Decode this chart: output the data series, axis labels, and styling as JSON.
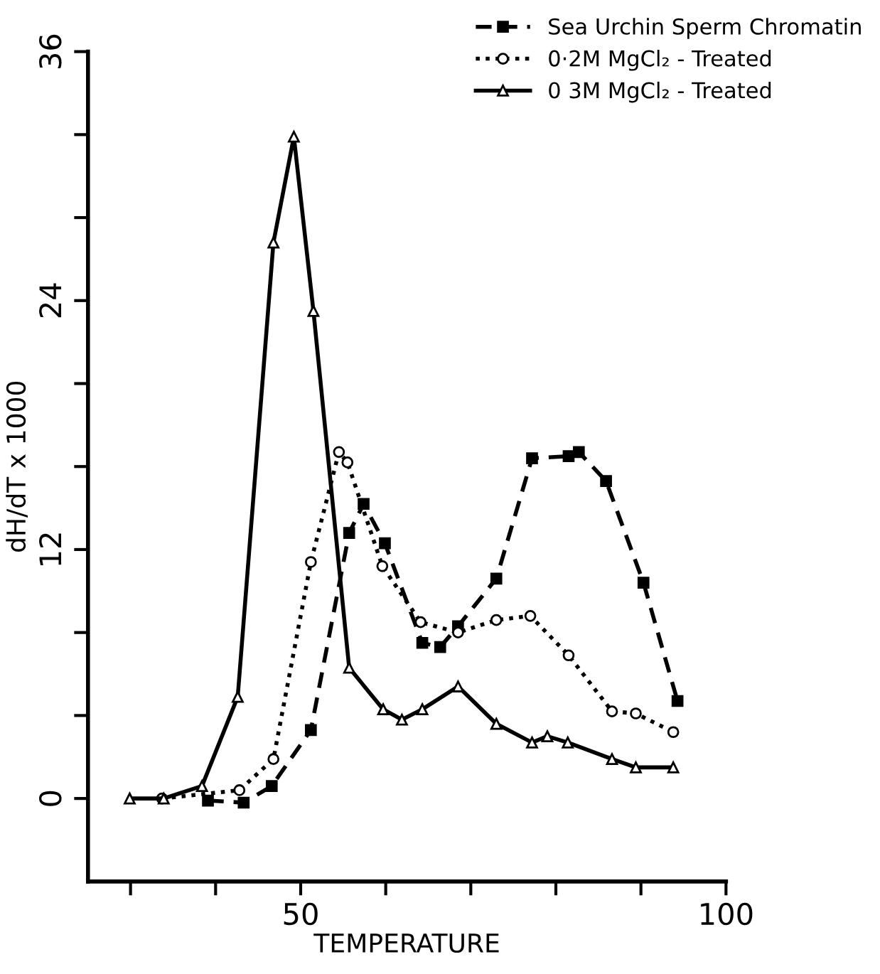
{
  "chart_data": {
    "type": "line",
    "xlabel": "TEMPERATURE",
    "ylabel": "dH/dT x 1000",
    "xlim": [
      25,
      100
    ],
    "ylim": [
      -4,
      36
    ],
    "xticks": [
      {
        "value": 30,
        "label": null
      },
      {
        "value": 40,
        "label": null
      },
      50,
      {
        "value": 60,
        "label": null
      },
      {
        "value": 70,
        "label": null
      },
      {
        "value": 80,
        "label": null
      },
      {
        "value": 90,
        "label": null
      },
      100
    ],
    "yticks": [
      0,
      {
        "value": 4,
        "label": null
      },
      {
        "value": 8,
        "label": null
      },
      12,
      {
        "value": 16,
        "label": null
      },
      {
        "value": 20,
        "label": null
      },
      24,
      {
        "value": 28,
        "label": null
      },
      {
        "value": 32,
        "label": null
      },
      36
    ],
    "legend": "top right",
    "grid": false,
    "series": [
      {
        "name": "Sea Urchin Sperm Chromatin",
        "color": "#000000",
        "marker": "square",
        "line_style": "dashed",
        "x": [
          39.1,
          43.3,
          46.6,
          51.2,
          55.7,
          57.4,
          59.9,
          64.3,
          66.4,
          68.5,
          73.0,
          77.2,
          81.5,
          82.7,
          85.9,
          90.3,
          94.3
        ],
        "values": [
          -0.1,
          -0.2,
          0.6,
          3.3,
          12.8,
          14.2,
          12.3,
          7.5,
          7.3,
          8.3,
          10.6,
          16.4,
          16.5,
          16.7,
          15.3,
          10.4,
          4.7
        ]
      },
      {
        "name": "0·2M MgCl₂ - Treated",
        "color": "#000000",
        "marker": "circle",
        "line_style": "dotted",
        "x": [
          33.7,
          42.8,
          46.8,
          51.2,
          54.5,
          55.5,
          59.6,
          64.1,
          68.5,
          73.0,
          77.0,
          81.5,
          86.6,
          89.4,
          93.8
        ],
        "values": [
          0.0,
          0.4,
          1.9,
          11.4,
          16.7,
          16.2,
          11.2,
          8.5,
          8.0,
          8.6,
          8.8,
          6.9,
          4.2,
          4.1,
          3.2
        ]
      },
      {
        "name": "0 3M MgCl₂ - Treated",
        "color": "#000000",
        "marker": "triangle",
        "line_style": "solid",
        "x": [
          29.9,
          33.9,
          38.4,
          42.6,
          46.8,
          49.2,
          51.5,
          55.7,
          59.7,
          61.9,
          64.3,
          68.5,
          73.0,
          77.2,
          79.0,
          81.4,
          86.6,
          89.4,
          93.8
        ],
        "values": [
          0.0,
          0.0,
          0.6,
          4.9,
          26.8,
          31.9,
          23.5,
          6.3,
          4.3,
          3.8,
          4.3,
          5.4,
          3.6,
          2.7,
          3.0,
          2.7,
          1.9,
          1.5,
          1.5
        ]
      }
    ]
  }
}
